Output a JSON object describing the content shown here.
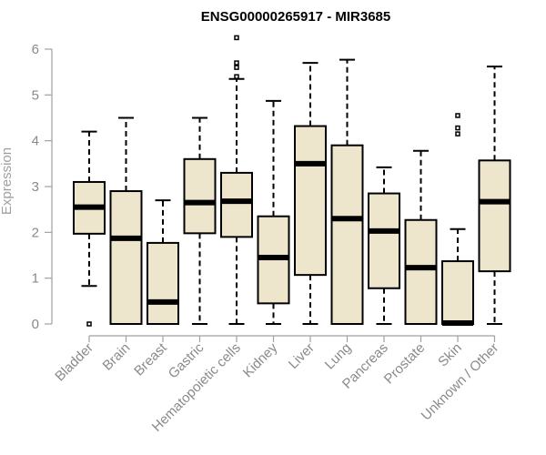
{
  "chart_data": {
    "type": "boxplot",
    "title": "ENSG00000265917 - MIR3685",
    "xlabel": "",
    "ylabel": "Expression",
    "ylim": [
      0,
      6
    ],
    "yticks": [
      0,
      1,
      2,
      3,
      4,
      5,
      6
    ],
    "grid": false,
    "legend": "none",
    "box_fill": "#ede6cc",
    "box_stroke": "#000000",
    "categories": [
      "Bladder",
      "Brain",
      "Breast",
      "Gastric",
      "Hematopoietic cells",
      "Kidney",
      "Liver",
      "Lung",
      "Pancreas",
      "Prostate",
      "Skin",
      "Unknown / Other"
    ],
    "boxes": [
      {
        "whisker_low": 0.83,
        "q1": 1.97,
        "median": 2.55,
        "q3": 3.1,
        "whisker_high": 4.2,
        "outliers": [
          0.0
        ]
      },
      {
        "whisker_low": 0.0,
        "q1": 0.0,
        "median": 1.87,
        "q3": 2.9,
        "whisker_high": 4.5,
        "outliers": []
      },
      {
        "whisker_low": 0.0,
        "q1": 0.0,
        "median": 0.48,
        "q3": 1.77,
        "whisker_high": 2.7,
        "outliers": []
      },
      {
        "whisker_low": 0.0,
        "q1": 1.98,
        "median": 2.65,
        "q3": 3.6,
        "whisker_high": 4.5,
        "outliers": []
      },
      {
        "whisker_low": 0.0,
        "q1": 1.9,
        "median": 2.68,
        "q3": 3.3,
        "whisker_high": 5.35,
        "outliers": [
          5.4,
          5.6,
          5.7,
          6.25
        ]
      },
      {
        "whisker_low": 0.0,
        "q1": 0.45,
        "median": 1.45,
        "q3": 2.35,
        "whisker_high": 4.87,
        "outliers": []
      },
      {
        "whisker_low": 0.0,
        "q1": 1.07,
        "median": 3.5,
        "q3": 4.32,
        "whisker_high": 5.7,
        "outliers": []
      },
      {
        "whisker_low": 0.0,
        "q1": 0.0,
        "median": 2.3,
        "q3": 3.9,
        "whisker_high": 5.77,
        "outliers": []
      },
      {
        "whisker_low": 0.0,
        "q1": 0.78,
        "median": 2.03,
        "q3": 2.85,
        "whisker_high": 3.42,
        "outliers": []
      },
      {
        "whisker_low": 0.0,
        "q1": 0.0,
        "median": 1.23,
        "q3": 2.27,
        "whisker_high": 3.78,
        "outliers": []
      },
      {
        "whisker_low": 0.0,
        "q1": 0.0,
        "median": 0.02,
        "q3": 1.37,
        "whisker_high": 2.07,
        "outliers": [
          4.15,
          4.28,
          4.55
        ]
      },
      {
        "whisker_low": 0.0,
        "q1": 1.15,
        "median": 2.67,
        "q3": 3.57,
        "whisker_high": 5.62,
        "outliers": []
      }
    ]
  }
}
